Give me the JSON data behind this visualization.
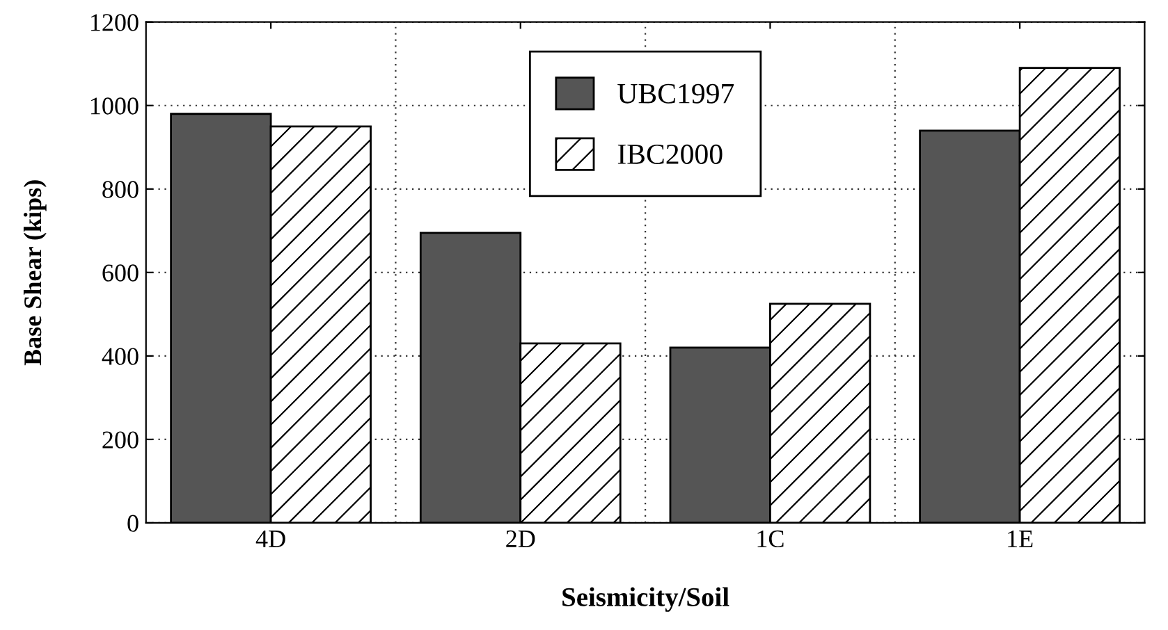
{
  "chart_data": {
    "type": "bar",
    "xlabel": "Seismicity/Soil",
    "ylabel": "Base Shear (kips)",
    "categories": [
      "4D",
      "2D",
      "1C",
      "1E"
    ],
    "series": [
      {
        "name": "UBC1997",
        "color": "#555555",
        "values": [
          980,
          695,
          420,
          940
        ]
      },
      {
        "name": "IBC2000",
        "color": "#000000",
        "values": [
          950,
          430,
          525,
          1090
        ]
      }
    ],
    "ylim": [
      0,
      1200
    ],
    "yticks": [
      0,
      200,
      400,
      600,
      800,
      1000,
      1200
    ],
    "grid": true,
    "legend": "top"
  }
}
